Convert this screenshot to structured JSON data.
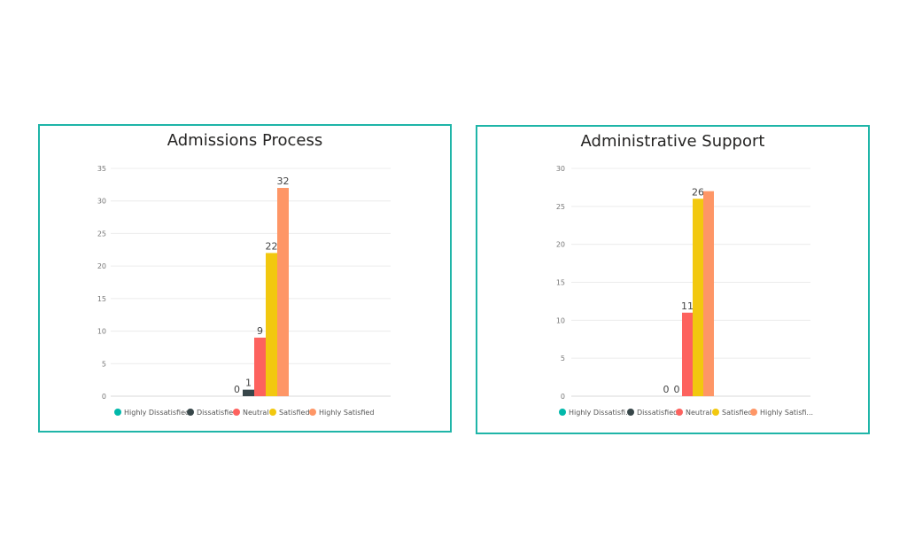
{
  "colors": {
    "border": "#1fb5a8",
    "highly_dissatisfied": "#01b8aa",
    "dissatisfied": "#374649",
    "neutral": "#fd625e",
    "satisfied": "#f2c80f",
    "highly_satisfied": "#fe9666"
  },
  "chart_data": [
    {
      "type": "bar",
      "title": "Admissions Process",
      "categories": [
        "Highly Dissatisfied",
        "Dissatisfied",
        "Neutral",
        "Satisfied",
        "Highly Satisfied"
      ],
      "values": [
        0,
        1,
        9,
        22,
        32
      ],
      "legend_labels": [
        "Highly Dissatisfied",
        "Dissatisfied",
        "Neutral",
        "Satisfied",
        "Highly Satisfied"
      ],
      "yticks": [
        0,
        5,
        10,
        15,
        20,
        25,
        30,
        35
      ],
      "ylim": [
        0,
        35
      ],
      "grid": true,
      "legend_position": "bottom-left"
    },
    {
      "type": "bar",
      "title": "Administrative Support",
      "categories": [
        "Highly Dissatisfied",
        "Dissatisfied",
        "Neutral",
        "Satisfied",
        "Highly Satisfied"
      ],
      "values": [
        0,
        0,
        11,
        26,
        27
      ],
      "data_labels": [
        "0",
        "0",
        "11",
        "26",
        ""
      ],
      "legend_labels": [
        "Highly Dissatisfi...",
        "Dissatisfied",
        "Neutral",
        "Satisfied",
        "Highly Satisfi..."
      ],
      "yticks": [
        0,
        5,
        10,
        15,
        20,
        25,
        30
      ],
      "ylim": [
        0,
        30
      ],
      "grid": true,
      "legend_position": "bottom-left"
    }
  ]
}
